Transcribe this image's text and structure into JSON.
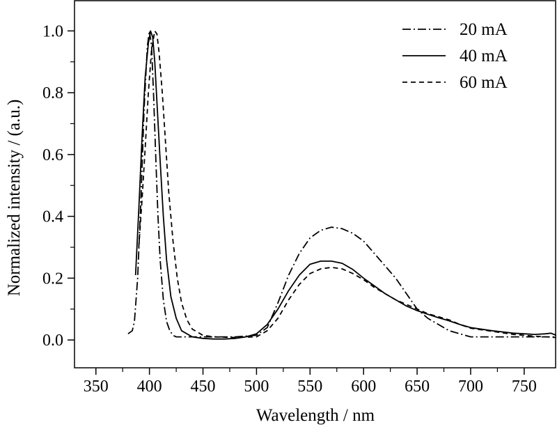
{
  "chart_data": {
    "type": "line",
    "title": "",
    "xlabel": "Wavelength / nm",
    "ylabel": "Normalized intensity / (a.u.)",
    "xlim": [
      330,
      780
    ],
    "ylim": [
      -0.09,
      1.1
    ],
    "xticks": [
      350,
      400,
      450,
      500,
      550,
      600,
      650,
      700,
      750
    ],
    "yticks": [
      0.0,
      0.2,
      0.4,
      0.6,
      0.8,
      1.0
    ],
    "xtick_labels": [
      "350",
      "400",
      "450",
      "500",
      "550",
      "600",
      "650",
      "700",
      "750"
    ],
    "ytick_labels": [
      "0.0",
      "0.2",
      "0.4",
      "0.6",
      "0.8",
      "1.0"
    ],
    "grid": false,
    "legend_position": "top-right",
    "series": [
      {
        "name": "20 mA",
        "line_style": "dash-dot",
        "x": [
          380,
          384,
          386,
          389,
          392,
          395,
          398,
          400,
          402,
          404,
          406,
          408,
          410,
          413,
          416,
          419,
          422,
          425,
          430,
          440,
          460,
          480,
          500,
          510,
          520,
          530,
          540,
          550,
          560,
          570,
          580,
          590,
          600,
          610,
          620,
          630,
          640,
          650,
          660,
          680,
          700,
          720,
          740,
          760,
          780
        ],
        "y": [
          0.02,
          0.03,
          0.06,
          0.2,
          0.45,
          0.75,
          0.95,
          1.0,
          0.95,
          0.78,
          0.58,
          0.4,
          0.26,
          0.13,
          0.06,
          0.03,
          0.015,
          0.01,
          0.01,
          0.01,
          0.01,
          0.01,
          0.015,
          0.04,
          0.12,
          0.21,
          0.28,
          0.33,
          0.355,
          0.365,
          0.36,
          0.345,
          0.32,
          0.28,
          0.24,
          0.2,
          0.15,
          0.1,
          0.07,
          0.03,
          0.01,
          0.01,
          0.01,
          0.01,
          0.01
        ]
      },
      {
        "name": "40 mA",
        "line_style": "solid",
        "x": [
          387,
          390,
          393,
          396,
          399,
          401,
          403,
          405,
          407,
          410,
          413,
          416,
          420,
          425,
          430,
          440,
          450,
          460,
          470,
          480,
          490,
          500,
          510,
          520,
          530,
          540,
          550,
          560,
          570,
          580,
          590,
          600,
          610,
          620,
          630,
          640,
          650,
          660,
          670,
          680,
          690,
          700,
          720,
          740,
          760,
          770,
          775,
          780
        ],
        "y": [
          0.21,
          0.42,
          0.65,
          0.85,
          0.96,
          1.0,
          0.98,
          0.9,
          0.77,
          0.58,
          0.4,
          0.26,
          0.14,
          0.07,
          0.03,
          0.01,
          0.005,
          0.003,
          0.003,
          0.005,
          0.01,
          0.02,
          0.05,
          0.1,
          0.16,
          0.21,
          0.245,
          0.255,
          0.255,
          0.248,
          0.228,
          0.2,
          0.175,
          0.15,
          0.13,
          0.11,
          0.095,
          0.083,
          0.072,
          0.062,
          0.05,
          0.04,
          0.03,
          0.022,
          0.018,
          0.02,
          0.022,
          0.015
        ]
      },
      {
        "name": "60 mA",
        "line_style": "dashed",
        "x": [
          390,
          393,
          396,
          399,
          402,
          405,
          407,
          409,
          412,
          415,
          418,
          422,
          426,
          430,
          435,
          440,
          450,
          460,
          480,
          500,
          510,
          520,
          530,
          540,
          550,
          560,
          570,
          580,
          590,
          600,
          610,
          620,
          630,
          640,
          650,
          660,
          670,
          680,
          690,
          700,
          720,
          740,
          760,
          780
        ],
        "y": [
          0.3,
          0.45,
          0.62,
          0.8,
          0.94,
          1.0,
          0.99,
          0.93,
          0.8,
          0.64,
          0.48,
          0.32,
          0.2,
          0.12,
          0.065,
          0.035,
          0.015,
          0.01,
          0.008,
          0.01,
          0.03,
          0.07,
          0.13,
          0.18,
          0.215,
          0.23,
          0.235,
          0.23,
          0.215,
          0.195,
          0.17,
          0.15,
          0.13,
          0.115,
          0.1,
          0.085,
          0.075,
          0.065,
          0.05,
          0.038,
          0.028,
          0.018,
          0.012,
          0.008
        ]
      }
    ]
  }
}
